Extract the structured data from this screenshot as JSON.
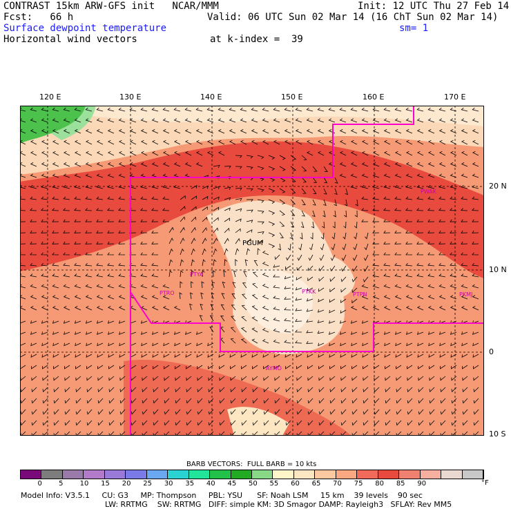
{
  "header": {
    "line1_left": "CONTRAST 15km ARW-GFS init   NCAR/MMM",
    "line1_right": "Init: 12 UTC Thu 27 Feb 14",
    "line2_left": "Fcst:   66 h",
    "line2_right": "Valid: 06 UTC Sun 02 Mar 14 (16 ChT Sun 02 Mar 14)",
    "line3_left": "Surface dewpoint temperature",
    "line3_right": "sm= 1",
    "line4_left": "Horizontal wind vectors",
    "line4_mid": "at k-index =  39"
  },
  "axes": {
    "lon_labels": [
      "120 E",
      "130 E",
      "140 E",
      "150 E",
      "160 E",
      "170 E"
    ],
    "lat_labels": [
      "20 N",
      "10 N",
      "0",
      "10 S"
    ]
  },
  "stations": [
    "PGUM",
    "PTYA",
    "PTRO",
    "PTKK",
    "PTPN",
    "PKMJ",
    "PWAK",
    "AYMO"
  ],
  "colors": {
    "land_green": "#4cc24c",
    "dew_55": "#fde6c2",
    "dew_65": "#f9c8a0",
    "dew_70": "#f59a74",
    "dew_75": "#ef6a52",
    "dew_80": "#e84a3e",
    "boundary": "#ff00cc"
  },
  "colorbar": {
    "title": "BARB VECTORS:  FULL BARB = 10 kts",
    "labels": [
      "0",
      "5",
      "10",
      "15",
      "20",
      "25",
      "30",
      "35",
      "40",
      "45",
      "50",
      "55",
      "60",
      "65",
      "70",
      "75",
      "80",
      "85",
      "90"
    ],
    "unit": "°F",
    "swatches": [
      "#7a0a7a",
      "#7d7d7d",
      "#9a7aa8",
      "#b27ac8",
      "#9a7ad8",
      "#7a7ae8",
      "#6aa8f2",
      "#2ad2d2",
      "#22e49a",
      "#22c24a",
      "#22aa22",
      "#88d888",
      "#fff5c8",
      "#fde6c2",
      "#fcc8a0",
      "#f9a882",
      "#f26a5a",
      "#e84a3e",
      "#f08070",
      "#f7b0a0",
      "#e8d8d0",
      "#c8c8c8"
    ]
  },
  "footer": {
    "line1": "Model Info: V3.5.1     CU: G3     MP: Thompson     PBL: YSU      SF: Noah LSM     15 km    39 levels    90 sec",
    "line2": "LW: RRTMG    SW: RRTMG   DIFF: simple KM: 3D Smagor DAMP: Rayleigh3   SFLAY: Rev MM5"
  }
}
